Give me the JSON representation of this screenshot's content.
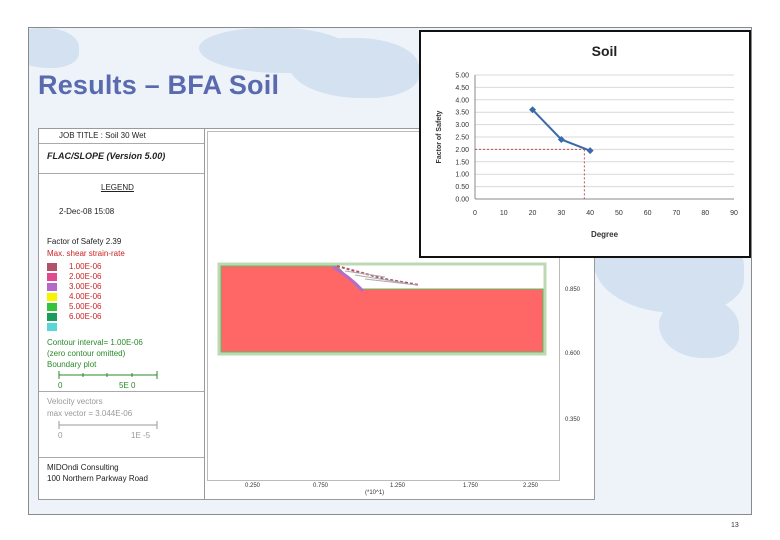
{
  "slide": {
    "title": "Results – BFA Soil",
    "page_number": "13"
  },
  "flac": {
    "job_title": "JOB TITLE : Soil 30 Wet",
    "program": "FLAC/SLOPE (Version 5.00)",
    "legend_heading": "LEGEND",
    "date": "2-Dec-08 15:08",
    "factor_of_safety": "Factor of Safety 2.39",
    "strain_heading": "Max. shear strain-rate",
    "strain_levels": [
      {
        "label": "1.00E-06",
        "color": "#b4506a"
      },
      {
        "label": "2.00E-06",
        "color": "#e3478d"
      },
      {
        "label": "3.00E-06",
        "color": "#b46ac8"
      },
      {
        "label": "4.00E-06",
        "color": "#f5f500"
      },
      {
        "label": "5.00E-06",
        "color": "#34c33b"
      },
      {
        "label": "6.00E-06",
        "color": "#1a9c5c"
      },
      {
        "label": "",
        "color": "#5ad6d6"
      }
    ],
    "contour_interval": "Contour interval= 1.00E-06",
    "zero_contour": "(zero contour omitted)",
    "boundary_plot": "Boundary plot",
    "boundary_scale_start": "0",
    "boundary_scale_end": "5E 0",
    "velocity_heading": "Velocity vectors",
    "max_vector": "max vector = 3.044E-06",
    "velocity_scale_start": "0",
    "velocity_scale_end": "1E -5",
    "company": "MIDOndi Consulting",
    "address": "100 Northern Parkway Road",
    "x_ticks": [
      "0.250",
      "0.750",
      "1.250",
      "1.750",
      "2.250"
    ],
    "x_unit": "(*10^1)",
    "y_ticks": [
      "0.850",
      "0.600",
      "0.350"
    ],
    "slope_color": "#ff6666"
  },
  "chart_data": {
    "type": "line",
    "title": "Soil",
    "xlabel": "Degree",
    "ylabel": "Factor of Safety",
    "x_ticks": [
      "0",
      "10",
      "20",
      "30",
      "40",
      "50",
      "60",
      "70",
      "80",
      "90"
    ],
    "y_ticks": [
      "0.00",
      "0.50",
      "1.00",
      "1.50",
      "2.00",
      "2.50",
      "3.00",
      "3.50",
      "4.00",
      "4.50",
      "5.00"
    ],
    "xlim": [
      0,
      90
    ],
    "ylim": [
      0,
      5
    ],
    "grid": true,
    "x": [
      20,
      30,
      40
    ],
    "y": [
      3.6,
      2.4,
      1.95
    ],
    "series_color": "#3a6aa8",
    "reference": {
      "x": 38,
      "y": 2.0,
      "color": "#c0504d"
    }
  }
}
